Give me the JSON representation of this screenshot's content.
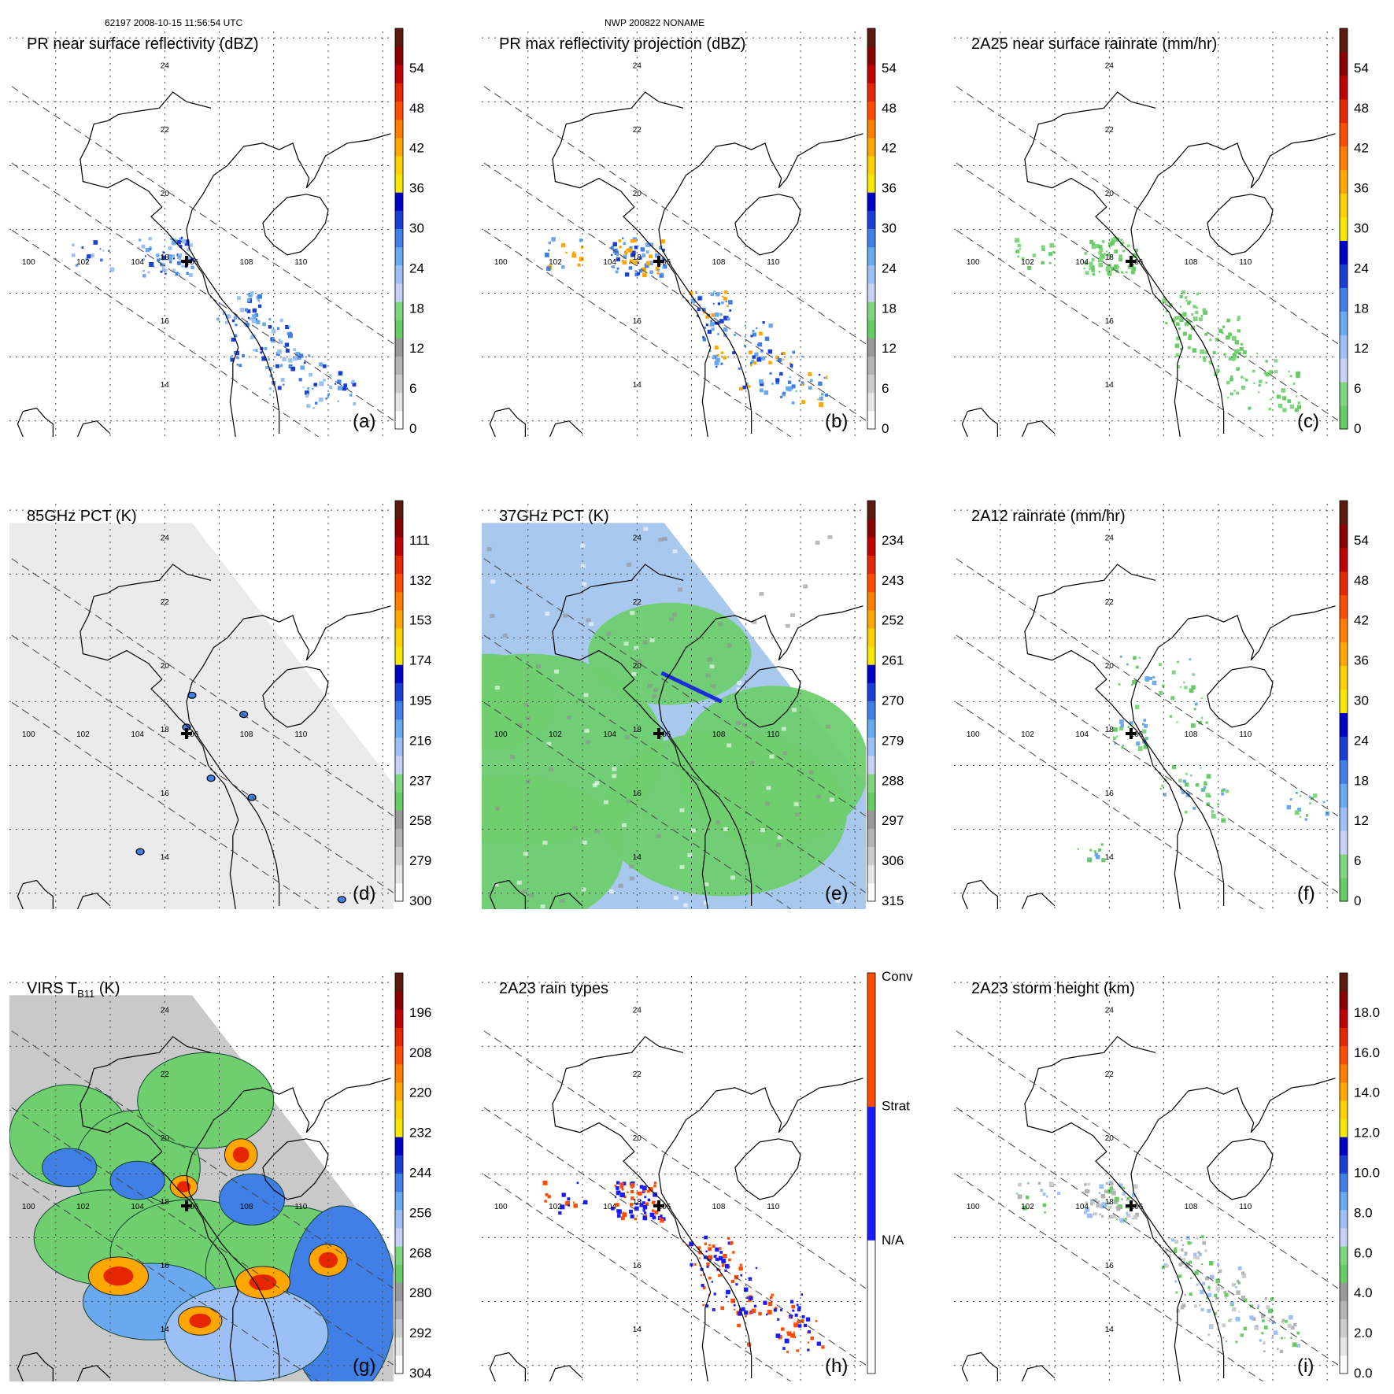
{
  "header": {
    "orbit_info": "62197 2008-10-15 11:56:54 UTC",
    "storm_info": "NWP 200822 NONAME"
  },
  "map": {
    "lon_labels": [
      "100",
      "102",
      "104",
      "106",
      "108",
      "110"
    ],
    "lat_labels": [
      "24",
      "22",
      "20",
      "18",
      "16",
      "14"
    ],
    "storm_center": {
      "lon": 105.8,
      "lat": 18.0
    }
  },
  "panels": [
    {
      "title": "PR near surface reflectivity (dBZ)",
      "letter": "(a)",
      "bg": "none",
      "cbar_labels": [
        "54",
        "48",
        "42",
        "36",
        "30",
        "24",
        "18",
        "12",
        "6",
        "0"
      ],
      "cbar_colors": [
        "#ffffff",
        "#e6e6e6",
        "#cccccc",
        "#b3b3b3",
        "#999999",
        "#66cc66",
        "#7fd67f",
        "#c6d3f4",
        "#9cc0f5",
        "#6aa8f0",
        "#3f7fe6",
        "#1a3fd6",
        "#0000c8",
        "#f7e600",
        "#ffd000",
        "#ffa600",
        "#ff7d00",
        "#ff4d00",
        "#e62600",
        "#c30000",
        "#8b0000",
        "#5c1a0e"
      ]
    },
    {
      "title": "PR max reflectivity projection (dBZ)",
      "letter": "(b)",
      "bg": "none",
      "cbar_labels": [
        "54",
        "48",
        "42",
        "36",
        "30",
        "24",
        "18",
        "12",
        "6",
        "0"
      ],
      "cbar_colors": [
        "#ffffff",
        "#e6e6e6",
        "#cccccc",
        "#b3b3b3",
        "#999999",
        "#66cc66",
        "#7fd67f",
        "#c6d3f4",
        "#9cc0f5",
        "#6aa8f0",
        "#3f7fe6",
        "#1a3fd6",
        "#0000c8",
        "#f7e600",
        "#ffd000",
        "#ffa600",
        "#ff7d00",
        "#ff4d00",
        "#e62600",
        "#c30000",
        "#8b0000",
        "#5c1a0e"
      ]
    },
    {
      "title": "2A25 near surface rainrate (mm/hr)",
      "letter": "(c)",
      "bg": "none",
      "cbar_labels": [
        "54",
        "48",
        "42",
        "36",
        "30",
        "24",
        "18",
        "12",
        "6",
        "0"
      ],
      "cbar_colors": [
        "#66cc66",
        "#7fd67f",
        "#c6d3f4",
        "#9cc0f5",
        "#6aa8f0",
        "#3f7fe6",
        "#1a3fd6",
        "#0000c8",
        "#f7e600",
        "#ffd000",
        "#ffa600",
        "#ff7d00",
        "#ff4d00",
        "#e62600",
        "#c30000",
        "#8b0000",
        "#5c1a0e"
      ]
    },
    {
      "title": "85GHz PCT (K)",
      "letter": "(d)",
      "bg": "gray",
      "cbar_labels": [
        "111",
        "132",
        "153",
        "174",
        "195",
        "216",
        "237",
        "258",
        "279",
        "300"
      ],
      "cbar_colors": [
        "#ffffff",
        "#e6e6e6",
        "#cccccc",
        "#b3b3b3",
        "#999999",
        "#66cc66",
        "#7fd67f",
        "#c6d3f4",
        "#9cc0f5",
        "#6aa8f0",
        "#3f7fe6",
        "#1a3fd6",
        "#0000c8",
        "#f7e600",
        "#ffd000",
        "#ffa600",
        "#ff7d00",
        "#ff4d00",
        "#e62600",
        "#c30000",
        "#8b0000",
        "#5c1a0e"
      ]
    },
    {
      "title": "37GHz PCT (K)",
      "letter": "(e)",
      "bg": "pct37",
      "cbar_labels": [
        "234",
        "243",
        "252",
        "261",
        "270",
        "279",
        "288",
        "297",
        "306",
        "315"
      ],
      "cbar_colors": [
        "#ffffff",
        "#e6e6e6",
        "#cccccc",
        "#b3b3b3",
        "#999999",
        "#66cc66",
        "#7fd67f",
        "#c6d3f4",
        "#9cc0f5",
        "#6aa8f0",
        "#3f7fe6",
        "#1a3fd6",
        "#0000c8",
        "#f7e600",
        "#ffd000",
        "#ffa600",
        "#ff7d00",
        "#ff4d00",
        "#e62600",
        "#c30000",
        "#8b0000",
        "#5c1a0e"
      ]
    },
    {
      "title": "2A12 rainrate (mm/hr)",
      "letter": "(f)",
      "bg": "none",
      "cbar_labels": [
        "54",
        "48",
        "42",
        "36",
        "30",
        "24",
        "18",
        "12",
        "6",
        "0"
      ],
      "cbar_colors": [
        "#66cc66",
        "#7fd67f",
        "#c6d3f4",
        "#9cc0f5",
        "#6aa8f0",
        "#3f7fe6",
        "#1a3fd6",
        "#0000c8",
        "#f7e600",
        "#ffd000",
        "#ffa600",
        "#ff7d00",
        "#ff4d00",
        "#e62600",
        "#c30000",
        "#8b0000",
        "#5c1a0e"
      ]
    },
    {
      "title": "VIRS T",
      "title_sub": "B11",
      "title_suffix": " (K)",
      "letter": "(g)",
      "bg": "virs",
      "cbar_labels": [
        "196",
        "208",
        "220",
        "232",
        "244",
        "256",
        "268",
        "280",
        "292",
        "304"
      ],
      "cbar_colors": [
        "#ffffff",
        "#e6e6e6",
        "#cccccc",
        "#b3b3b3",
        "#999999",
        "#66cc66",
        "#7fd67f",
        "#c6d3f4",
        "#9cc0f5",
        "#6aa8f0",
        "#3f7fe6",
        "#1a3fd6",
        "#0000c8",
        "#f7e600",
        "#ffd000",
        "#ffa600",
        "#ff7d00",
        "#ff4d00",
        "#e62600",
        "#c30000",
        "#8b0000",
        "#5c1a0e"
      ]
    },
    {
      "title": "2A23 rain types",
      "letter": "(h)",
      "bg": "none",
      "cbar_labels": [
        "Conv",
        "Strat",
        "N/A"
      ],
      "cbar_type": "categorical",
      "cbar_colors": [
        "#ffffff",
        "#1a1aff",
        "#ff4d00"
      ]
    },
    {
      "title": "2A23 storm height (km)",
      "letter": "(i)",
      "bg": "none",
      "cbar_labels": [
        "18.0",
        "16.0",
        "14.0",
        "12.0",
        "10.0",
        "8.0",
        "6.0",
        "4.0",
        "2.0",
        "0.0"
      ],
      "cbar_colors": [
        "#ffffff",
        "#e6e6e6",
        "#cccccc",
        "#b3b3b3",
        "#999999",
        "#66cc66",
        "#7fd67f",
        "#c6d3f4",
        "#9cc0f5",
        "#6aa8f0",
        "#3f7fe6",
        "#1a3fd6",
        "#0000c8",
        "#f7e600",
        "#ffd000",
        "#ffa600",
        "#ff7d00",
        "#ff4d00",
        "#e62600",
        "#c30000",
        "#8b0000",
        "#5c1a0e"
      ]
    }
  ]
}
